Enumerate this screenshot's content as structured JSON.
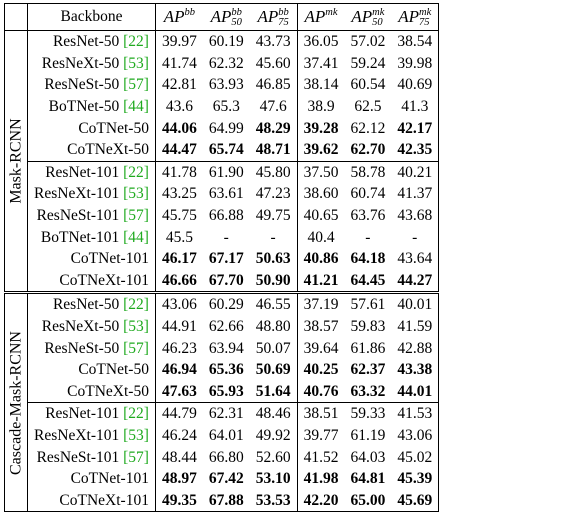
{
  "header": {
    "backbone": "Backbone",
    "cols": [
      {
        "base": "AP",
        "sup": "bb",
        "sub": ""
      },
      {
        "base": "AP",
        "sup": "bb",
        "sub": "50"
      },
      {
        "base": "AP",
        "sup": "bb",
        "sub": "75"
      },
      {
        "base": "AP",
        "sup": "mk",
        "sub": ""
      },
      {
        "base": "AP",
        "sup": "mk",
        "sub": "50"
      },
      {
        "base": "AP",
        "sup": "mk",
        "sub": "75"
      }
    ]
  },
  "sections": [
    {
      "label": "Mask-RCNN",
      "groups": [
        [
          {
            "name": "ResNet-50 ",
            "cite": "[22]",
            "vals": [
              "39.97",
              "60.19",
              "43.73",
              "36.05",
              "57.02",
              "38.54"
            ],
            "bold": [
              0,
              0,
              0,
              0,
              0,
              0
            ]
          },
          {
            "name": "ResNeXt-50 ",
            "cite": "[53]",
            "vals": [
              "41.74",
              "62.32",
              "45.60",
              "37.41",
              "59.24",
              "39.98"
            ],
            "bold": [
              0,
              0,
              0,
              0,
              0,
              0
            ]
          },
          {
            "name": "ResNeSt-50 ",
            "cite": "[57]",
            "vals": [
              "42.81",
              "63.93",
              "46.85",
              "38.14",
              "60.54",
              "40.69"
            ],
            "bold": [
              0,
              0,
              0,
              0,
              0,
              0
            ]
          },
          {
            "name": "BoTNet-50 ",
            "cite": "[44]",
            "vals": [
              "43.6",
              "65.3",
              "47.6",
              "38.9",
              "62.5",
              "41.3"
            ],
            "bold": [
              0,
              0,
              0,
              0,
              0,
              0
            ]
          },
          {
            "name": "CoTNet-50",
            "cite": "",
            "vals": [
              "44.06",
              "64.99",
              "48.29",
              "39.28",
              "62.12",
              "42.17"
            ],
            "bold": [
              1,
              0,
              1,
              1,
              0,
              1
            ]
          },
          {
            "name": "CoTNeXt-50",
            "cite": "",
            "vals": [
              "44.47",
              "65.74",
              "48.71",
              "39.62",
              "62.70",
              "42.35"
            ],
            "bold": [
              1,
              1,
              1,
              1,
              1,
              1
            ]
          }
        ],
        [
          {
            "name": "ResNet-101 ",
            "cite": "[22]",
            "vals": [
              "41.78",
              "61.90",
              "45.80",
              "37.50",
              "58.78",
              "40.21"
            ],
            "bold": [
              0,
              0,
              0,
              0,
              0,
              0
            ]
          },
          {
            "name": "ResNeXt-101 ",
            "cite": "[53]",
            "vals": [
              "43.25",
              "63.61",
              "47.23",
              "38.60",
              "60.74",
              "41.37"
            ],
            "bold": [
              0,
              0,
              0,
              0,
              0,
              0
            ]
          },
          {
            "name": "ResNeSt-101 ",
            "cite": "[57]",
            "vals": [
              "45.75",
              "66.88",
              "49.75",
              "40.65",
              "63.76",
              "43.68"
            ],
            "bold": [
              0,
              0,
              0,
              0,
              0,
              0
            ]
          },
          {
            "name": "BoTNet-101 ",
            "cite": "[44]",
            "vals": [
              "45.5",
              "-",
              "-",
              "40.4",
              "-",
              "-"
            ],
            "bold": [
              0,
              0,
              0,
              0,
              0,
              0
            ]
          },
          {
            "name": "CoTNet-101",
            "cite": "",
            "vals": [
              "46.17",
              "67.17",
              "50.63",
              "40.86",
              "64.18",
              "43.64"
            ],
            "bold": [
              1,
              1,
              1,
              1,
              1,
              0
            ]
          },
          {
            "name": "CoTNeXt-101",
            "cite": "",
            "vals": [
              "46.66",
              "67.70",
              "50.90",
              "41.21",
              "64.45",
              "44.27"
            ],
            "bold": [
              1,
              1,
              1,
              1,
              1,
              1
            ]
          }
        ]
      ]
    },
    {
      "label": "Cascade-Mask-RCNN",
      "groups": [
        [
          {
            "name": "ResNet-50 ",
            "cite": "[22]",
            "vals": [
              "43.06",
              "60.29",
              "46.55",
              "37.19",
              "57.61",
              "40.01"
            ],
            "bold": [
              0,
              0,
              0,
              0,
              0,
              0
            ]
          },
          {
            "name": "ResNeXt-50 ",
            "cite": "[53]",
            "vals": [
              "44.91",
              "62.66",
              "48.80",
              "38.57",
              "59.83",
              "41.59"
            ],
            "bold": [
              0,
              0,
              0,
              0,
              0,
              0
            ]
          },
          {
            "name": "ResNeSt-50 ",
            "cite": "[57]",
            "vals": [
              "46.23",
              "63.94",
              "50.07",
              "39.64",
              "61.86",
              "42.88"
            ],
            "bold": [
              0,
              0,
              0,
              0,
              0,
              0
            ]
          },
          {
            "name": "CoTNet-50",
            "cite": "",
            "vals": [
              "46.94",
              "65.36",
              "50.69",
              "40.25",
              "62.37",
              "43.38"
            ],
            "bold": [
              1,
              1,
              1,
              1,
              1,
              1
            ]
          },
          {
            "name": "CoTNeXt-50",
            "cite": "",
            "vals": [
              "47.63",
              "65.93",
              "51.64",
              "40.76",
              "63.32",
              "44.01"
            ],
            "bold": [
              1,
              1,
              1,
              1,
              1,
              1
            ]
          }
        ],
        [
          {
            "name": "ResNet-101 ",
            "cite": "[22]",
            "vals": [
              "44.79",
              "62.31",
              "48.46",
              "38.51",
              "59.33",
              "41.53"
            ],
            "bold": [
              0,
              0,
              0,
              0,
              0,
              0
            ]
          },
          {
            "name": "ResNeXt-101 ",
            "cite": "[53]",
            "vals": [
              "46.24",
              "64.01",
              "49.92",
              "39.77",
              "61.19",
              "43.06"
            ],
            "bold": [
              0,
              0,
              0,
              0,
              0,
              0
            ]
          },
          {
            "name": "ResNeSt-101 ",
            "cite": "[57]",
            "vals": [
              "48.44",
              "66.80",
              "52.60",
              "41.52",
              "64.03",
              "45.02"
            ],
            "bold": [
              0,
              0,
              0,
              0,
              0,
              0
            ]
          },
          {
            "name": "CoTNet-101",
            "cite": "",
            "vals": [
              "48.97",
              "67.42",
              "53.10",
              "41.98",
              "64.81",
              "45.39"
            ],
            "bold": [
              1,
              1,
              1,
              1,
              1,
              1
            ]
          },
          {
            "name": "CoTNeXt-101",
            "cite": "",
            "vals": [
              "49.35",
              "67.88",
              "53.53",
              "42.20",
              "65.00",
              "45.69"
            ],
            "bold": [
              1,
              1,
              1,
              1,
              1,
              1
            ]
          }
        ]
      ]
    }
  ]
}
